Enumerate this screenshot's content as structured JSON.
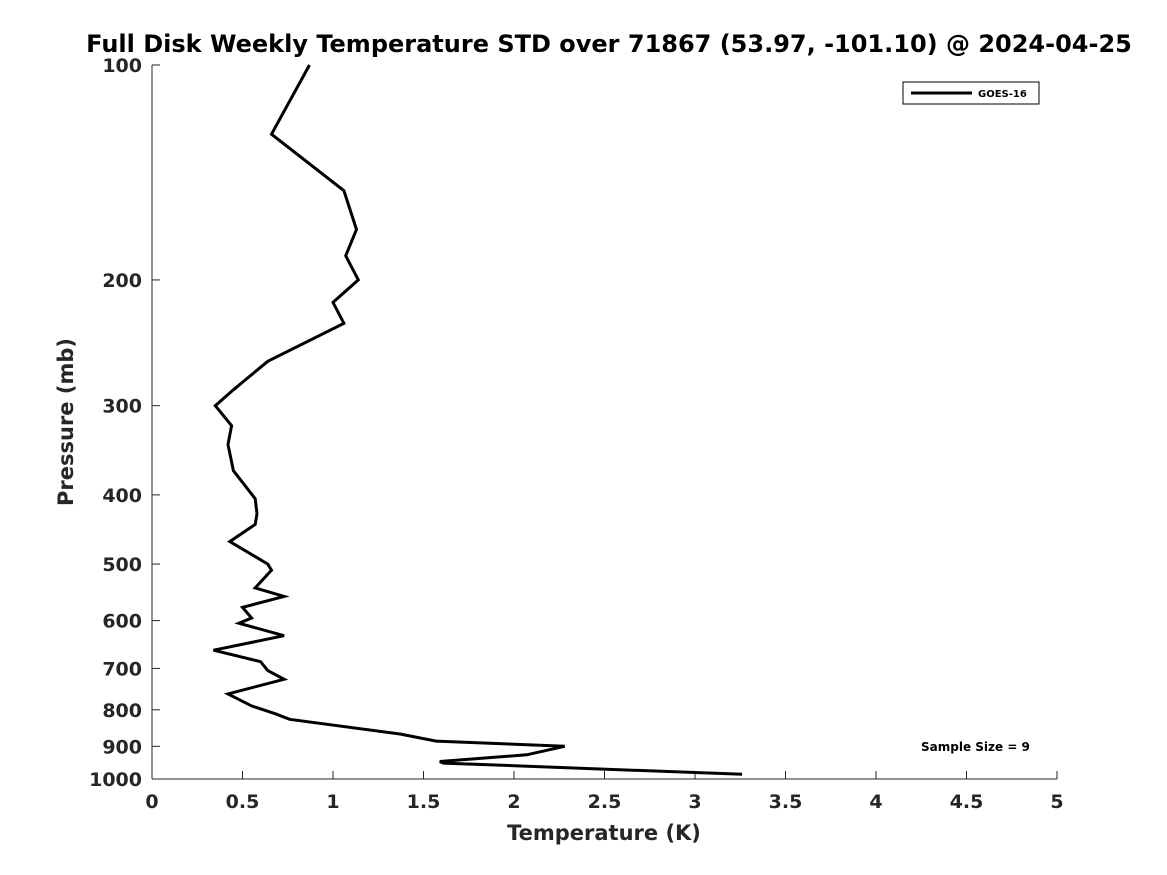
{
  "chart_data": {
    "type": "line",
    "title": "Full Disk Weekly Temperature STD over 71867 (53.97, -101.10) @ 2024-04-25",
    "xlabel": "Temperature (K)",
    "ylabel": "Pressure (mb)",
    "xlim": [
      0,
      5
    ],
    "ylim": [
      100,
      1000
    ],
    "y_scale": "log",
    "y_reversed": true,
    "x_ticks": [
      0,
      0.5,
      1,
      1.5,
      2,
      2.5,
      3,
      3.5,
      4,
      4.5,
      5
    ],
    "x_tick_labels": [
      "0",
      "0.5",
      "1",
      "1.5",
      "2",
      "2.5",
      "3",
      "3.5",
      "4",
      "4.5",
      "5"
    ],
    "y_ticks": [
      100,
      200,
      300,
      400,
      500,
      600,
      700,
      800,
      900,
      1000
    ],
    "y_tick_labels": [
      "100",
      "200",
      "300",
      "400",
      "500",
      "600",
      "700",
      "800",
      "900",
      "1000"
    ],
    "grid": false,
    "legend_position": "top-right",
    "annotation": "Sample Size = 9",
    "series": [
      {
        "name": "GOES-16",
        "color": "#000000",
        "x": [
          0.87,
          0.66,
          1.06,
          1.13,
          1.07,
          1.14,
          1.0,
          1.06,
          0.64,
          0.45,
          0.35,
          0.44,
          0.42,
          0.45,
          0.57,
          0.58,
          0.57,
          0.43,
          0.64,
          0.66,
          0.57,
          0.73,
          0.5,
          0.55,
          0.48,
          0.73,
          0.34,
          0.6,
          0.64,
          0.73,
          0.42,
          0.55,
          0.68,
          0.76,
          1.37,
          1.57,
          2.28,
          2.07,
          1.59,
          1.61,
          3.26
        ],
        "y": [
          100,
          125,
          150,
          170,
          185,
          200,
          215,
          230,
          260,
          285,
          300,
          320,
          340,
          370,
          405,
          425,
          440,
          465,
          500,
          510,
          540,
          555,
          575,
          595,
          605,
          630,
          660,
          685,
          705,
          725,
          760,
          790,
          810,
          825,
          865,
          885,
          900,
          925,
          945,
          950,
          985
        ]
      }
    ]
  }
}
